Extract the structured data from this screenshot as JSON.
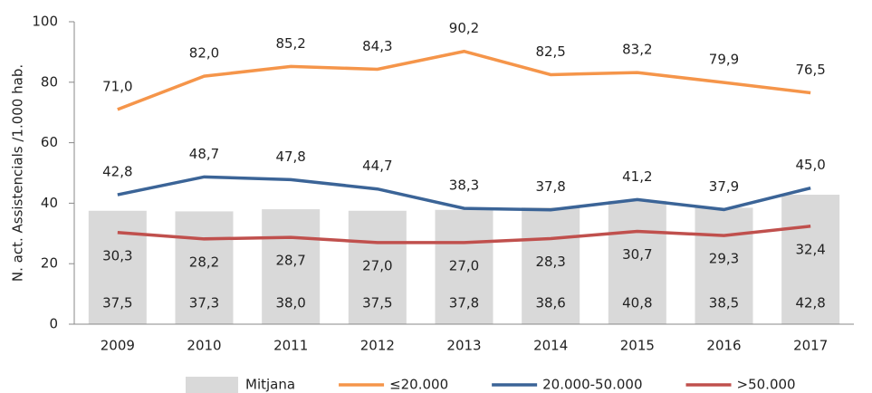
{
  "chart_data": {
    "type": "bar",
    "y_axis_label": "N. act. Assistencials /1.000 hab.",
    "categories": [
      "2009",
      "2010",
      "2011",
      "2012",
      "2013",
      "2014",
      "2015",
      "2016",
      "2017"
    ],
    "ylim": [
      0,
      100
    ],
    "yticks": [
      0,
      20,
      40,
      60,
      80,
      100
    ],
    "grid": false,
    "legend": "bottom",
    "series": [
      {
        "name": "Mitjana",
        "type": "bar",
        "color": "#d9d9d9",
        "label_color": "#222222",
        "values": [
          37.5,
          37.3,
          38.0,
          37.5,
          37.8,
          38.6,
          40.8,
          38.5,
          42.8
        ],
        "value_labels": [
          "37,5",
          "37,3",
          "38,0",
          "37,5",
          "37,8",
          "38,6",
          "40,8",
          "38,5",
          "42,8"
        ]
      },
      {
        "name": "≤20.000",
        "type": "line",
        "color": "#f5954a",
        "label_color": "#e0823a",
        "values": [
          71.0,
          82.0,
          85.2,
          84.3,
          90.2,
          82.5,
          83.2,
          79.9,
          76.5
        ],
        "value_labels": [
          "71,0",
          "82,0",
          "85,2",
          "84,3",
          "90,2",
          "82,5",
          "83,2",
          "79,9",
          "76,5"
        ]
      },
      {
        "name": "20.000-50.000",
        "type": "line",
        "color": "#3b6497",
        "label_color": "#4a6d95",
        "values": [
          42.8,
          48.7,
          47.8,
          44.7,
          38.3,
          37.8,
          41.2,
          37.9,
          45.0
        ],
        "value_labels": [
          "42,8",
          "48,7",
          "47,8",
          "44,7",
          "38,3",
          "37,8",
          "41,2",
          "37,9",
          "45,0"
        ]
      },
      {
        "name": ">50.000",
        "type": "line",
        "color": "#c0504d",
        "label_color": "#b54a47",
        "values": [
          30.3,
          28.2,
          28.7,
          27.0,
          27.0,
          28.3,
          30.7,
          29.3,
          32.4
        ],
        "value_labels": [
          "30,3",
          "28,2",
          "28,7",
          "27,0",
          "27,0",
          "28,3",
          "30,7",
          "29,3",
          "32,4"
        ]
      }
    ]
  }
}
